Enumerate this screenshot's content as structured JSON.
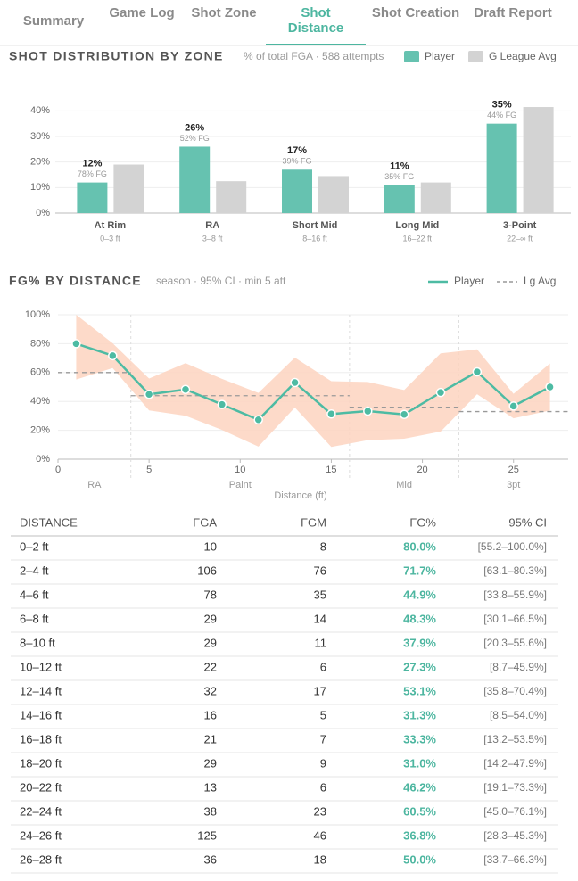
{
  "tabs": [
    "Summary",
    "Game Log",
    "Shot Zone",
    "Shot Distance",
    "Shot Creation",
    "Draft Report"
  ],
  "active_tab": 3,
  "chart_data": [
    {
      "type": "bar",
      "title": "SHOT DISTRIBUTION BY ZONE",
      "subtitle": "% of total FGA · 588 attempts",
      "categories": [
        "At Rim",
        "RA",
        "Short Mid",
        "Long Mid",
        "3-Point"
      ],
      "sublabels": [
        "0–3 ft",
        "3–8 ft",
        "8–16 ft",
        "16–22 ft",
        "22–∞ ft"
      ],
      "series": [
        {
          "name": "Player",
          "color": "#66c2b0",
          "values": [
            12,
            26,
            17,
            11,
            35
          ],
          "value_labels": [
            "12%",
            "26%",
            "17%",
            "11%",
            "35%"
          ],
          "fg_labels": [
            "78% FG",
            "52% FG",
            "39% FG",
            "35% FG",
            "44% FG"
          ]
        },
        {
          "name": "G League Avg",
          "color": "#d3d3d3",
          "values": [
            19,
            12.5,
            14.5,
            12,
            41.5
          ]
        }
      ],
      "ylim": [
        0,
        45
      ],
      "yticks": [
        {
          "value": 0,
          "label": "0%"
        },
        {
          "value": 10,
          "label": "10%"
        },
        {
          "value": 20,
          "label": "20%"
        },
        {
          "value": 30,
          "label": "30%"
        },
        {
          "value": 40,
          "label": "40%"
        }
      ],
      "grid": true
    },
    {
      "type": "line",
      "title": "FG% BY DISTANCE",
      "subtitle": "season · 95% CI · min 5 att",
      "x": [
        1,
        3,
        5,
        7,
        9,
        11,
        13,
        15,
        17,
        19,
        21,
        23,
        25,
        27
      ],
      "xlim": [
        0,
        28
      ],
      "xticks": [
        0,
        5,
        10,
        15,
        20,
        25
      ],
      "xlabel": "Distance (ft)",
      "ylim": [
        0,
        100
      ],
      "yticks": [
        {
          "value": 0,
          "label": "0%"
        },
        {
          "value": 20,
          "label": "20%"
        },
        {
          "value": 40,
          "label": "40%"
        },
        {
          "value": 60,
          "label": "60%"
        },
        {
          "value": 80,
          "label": "80%"
        },
        {
          "value": 100,
          "label": "100%"
        }
      ],
      "series": [
        {
          "name": "Player",
          "color": "#4dbba3",
          "ci_color": "#fdd3bf",
          "values": [
            80.0,
            71.7,
            44.9,
            48.3,
            37.9,
            27.3,
            53.1,
            31.3,
            33.3,
            31.0,
            46.2,
            60.5,
            36.8,
            50.0
          ],
          "ci_low": [
            55.2,
            63.1,
            33.8,
            30.1,
            20.3,
            8.7,
            35.8,
            8.5,
            13.2,
            14.2,
            19.1,
            45.0,
            28.3,
            33.7
          ],
          "ci_high": [
            100.0,
            80.3,
            55.9,
            66.5,
            55.6,
            45.9,
            70.4,
            54.0,
            53.5,
            47.9,
            73.3,
            76.1,
            45.3,
            66.3
          ]
        }
      ],
      "league_avg": {
        "name": "Lg Avg",
        "color": "#999999",
        "segments": [
          {
            "from": 0,
            "to": 4,
            "value": 60
          },
          {
            "from": 4,
            "to": 16,
            "value": 44
          },
          {
            "from": 16,
            "to": 22,
            "value": 36
          },
          {
            "from": 22,
            "to": 28,
            "value": 33
          }
        ]
      },
      "zone_bounds": [
        4,
        16,
        22
      ],
      "zones": [
        {
          "label": "RA",
          "x": 2
        },
        {
          "label": "Paint",
          "x": 10
        },
        {
          "label": "Mid",
          "x": 19
        },
        {
          "label": "3pt",
          "x": 25
        }
      ],
      "grid": true
    }
  ],
  "table": {
    "columns": [
      "DISTANCE",
      "FGA",
      "FGM",
      "FG%",
      "95% CI"
    ],
    "rows": [
      [
        "0–2 ft",
        "10",
        "8",
        "80.0%",
        "[55.2–100.0%]"
      ],
      [
        "2–4 ft",
        "106",
        "76",
        "71.7%",
        "[63.1–80.3%]"
      ],
      [
        "4–6 ft",
        "78",
        "35",
        "44.9%",
        "[33.8–55.9%]"
      ],
      [
        "6–8 ft",
        "29",
        "14",
        "48.3%",
        "[30.1–66.5%]"
      ],
      [
        "8–10 ft",
        "29",
        "11",
        "37.9%",
        "[20.3–55.6%]"
      ],
      [
        "10–12 ft",
        "22",
        "6",
        "27.3%",
        "[8.7–45.9%]"
      ],
      [
        "12–14 ft",
        "32",
        "17",
        "53.1%",
        "[35.8–70.4%]"
      ],
      [
        "14–16 ft",
        "16",
        "5",
        "31.3%",
        "[8.5–54.0%]"
      ],
      [
        "16–18 ft",
        "21",
        "7",
        "33.3%",
        "[13.2–53.5%]"
      ],
      [
        "18–20 ft",
        "29",
        "9",
        "31.0%",
        "[14.2–47.9%]"
      ],
      [
        "20–22 ft",
        "13",
        "6",
        "46.2%",
        "[19.1–73.3%]"
      ],
      [
        "22–24 ft",
        "38",
        "23",
        "60.5%",
        "[45.0–76.1%]"
      ],
      [
        "24–26 ft",
        "125",
        "46",
        "36.8%",
        "[28.3–45.3%]"
      ],
      [
        "26–28 ft",
        "36",
        "18",
        "50.0%",
        "[33.7–66.3%]"
      ]
    ]
  }
}
